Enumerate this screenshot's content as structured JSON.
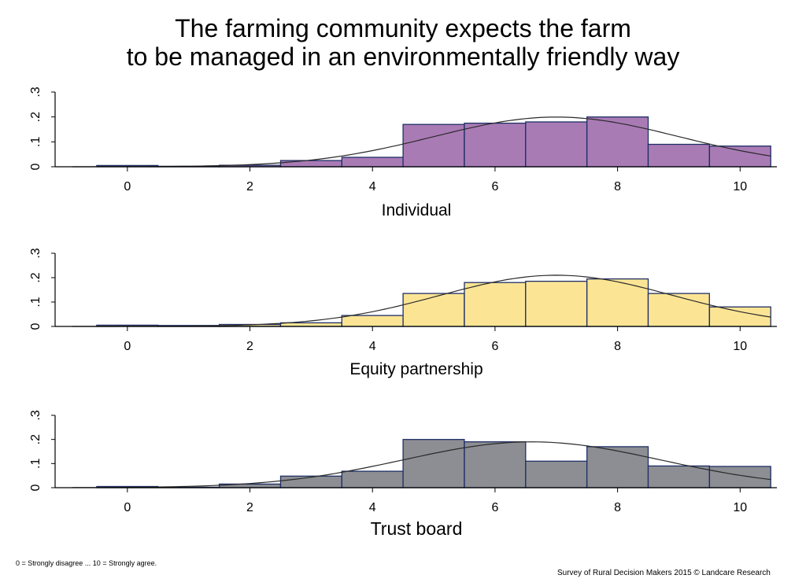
{
  "title_line1": "The farming community expects the farm",
  "title_line2": "to be managed in an environmentally friendly way",
  "footnote_left": "0 = Strongly disagree ... 10 = Strongly agree.",
  "footnote_right": "Survey of Rural Decision Makers 2015 © Landcare Research",
  "chart_data": [
    {
      "type": "bar",
      "title": "Individual",
      "xlabel": "Individual",
      "categories": [
        0,
        1,
        2,
        3,
        4,
        5,
        6,
        7,
        8,
        9,
        10
      ],
      "values": [
        0.005,
        0.002,
        0.006,
        0.025,
        0.038,
        0.17,
        0.175,
        0.18,
        0.2,
        0.09,
        0.083
      ],
      "normal_fit": {
        "mean": 7.0,
        "sd": 2.0
      },
      "xlim": [
        -1,
        10.6
      ],
      "ylim": [
        0,
        0.3
      ],
      "xticks": [
        "0",
        "2",
        "4",
        "6",
        "8",
        "10"
      ],
      "yticks": [
        "0",
        ".1",
        ".2",
        ".3"
      ],
      "color": "#a97bb5"
    },
    {
      "type": "bar",
      "title": "Equity partnership",
      "xlabel": "Equity partnership",
      "categories": [
        0,
        1,
        2,
        3,
        4,
        5,
        6,
        7,
        8,
        9,
        10
      ],
      "values": [
        0.005,
        0.004,
        0.008,
        0.015,
        0.045,
        0.135,
        0.18,
        0.185,
        0.195,
        0.135,
        0.08
      ],
      "normal_fit": {
        "mean": 7.0,
        "sd": 1.9
      },
      "xlim": [
        -1,
        10.6
      ],
      "ylim": [
        0,
        0.3
      ],
      "xticks": [
        "0",
        "2",
        "4",
        "6",
        "8",
        "10"
      ],
      "yticks": [
        "0",
        ".1",
        ".2",
        ".3"
      ],
      "color": "#fbe595"
    },
    {
      "type": "bar",
      "title": "Trust board",
      "xlabel": "Trust board",
      "categories": [
        0,
        1,
        2,
        3,
        4,
        5,
        6,
        7,
        8,
        9,
        10
      ],
      "values": [
        0.005,
        0.002,
        0.015,
        0.048,
        0.068,
        0.2,
        0.19,
        0.11,
        0.17,
        0.09,
        0.088
      ],
      "normal_fit": {
        "mean": 6.6,
        "sd": 2.1
      },
      "xlim": [
        -1,
        10.6
      ],
      "ylim": [
        0,
        0.3
      ],
      "xticks": [
        "0",
        "2",
        "4",
        "6",
        "8",
        "10"
      ],
      "yticks": [
        "0",
        ".1",
        ".2",
        ".3"
      ],
      "color": "#8c8e93"
    }
  ]
}
